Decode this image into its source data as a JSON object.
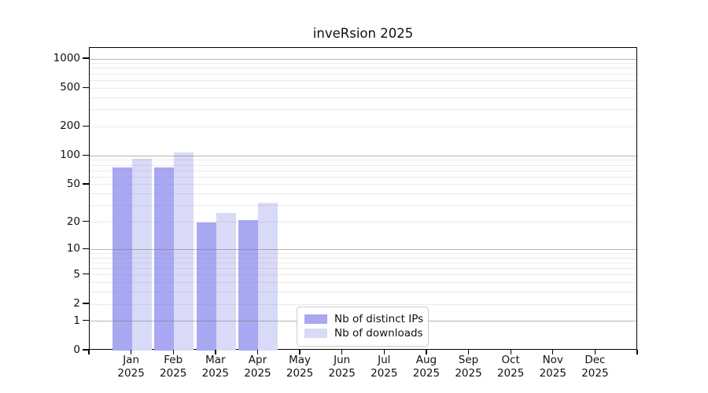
{
  "chart_data": {
    "type": "bar",
    "title": "inveRsion 2025",
    "categories": [
      "Jan",
      "Feb",
      "Mar",
      "Apr",
      "May",
      "Jun",
      "Jul",
      "Aug",
      "Sep",
      "Oct",
      "Nov",
      "Dec"
    ],
    "year": "2025",
    "series": [
      {
        "name": "Nb of distinct IPs",
        "color": "#a8a8f2",
        "values": [
          75,
          75,
          20,
          21,
          0,
          0,
          0,
          0,
          0,
          0,
          0,
          0
        ]
      },
      {
        "name": "Nb of downloads",
        "color": "#d9d9f8",
        "values": [
          93,
          108,
          25,
          32,
          0,
          0,
          0,
          0,
          0,
          0,
          0,
          0
        ]
      }
    ],
    "y_axis": {
      "scale": "log10(1+v)",
      "ticks": [
        0,
        1,
        2,
        5,
        10,
        20,
        50,
        100,
        200,
        500,
        1000
      ],
      "major_gridlines": [
        1,
        10,
        100,
        1000
      ],
      "minor_gridlines": [
        2,
        3,
        4,
        5,
        6,
        7,
        8,
        9,
        20,
        30,
        40,
        50,
        60,
        70,
        80,
        90,
        200,
        300,
        400,
        500,
        600,
        700,
        800,
        900
      ],
      "min": 0,
      "max": 1000
    },
    "legend": {
      "position": "lower-center"
    },
    "grid": true,
    "colors": {
      "axis_frame": "#000000",
      "text": "#111111",
      "major_grid": "#808080",
      "minor_grid": "#e9e9e9",
      "background": "#ffffff"
    }
  }
}
